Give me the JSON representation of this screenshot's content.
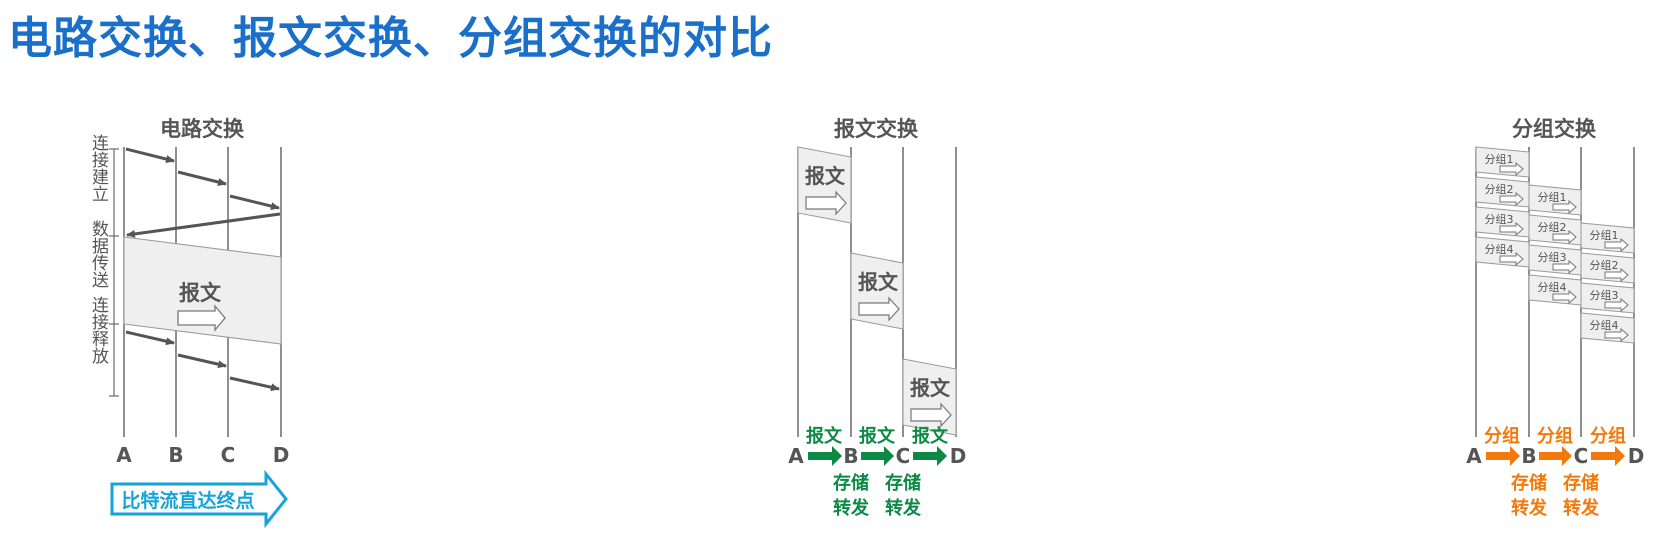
{
  "title": "电路交换、报文交换、分组交换的对比",
  "colors": {
    "title": "#1a6fc9",
    "gray": "#555555",
    "line": "#6a6a6a",
    "fill": "#efefef",
    "green": "#0c8a45",
    "orange": "#f27a0c",
    "blue": "#16a3d9"
  },
  "nodes": [
    "A",
    "B",
    "C",
    "D"
  ],
  "circuit": {
    "heading": "电路交换",
    "phases": [
      "连接建立",
      "数据传送",
      "连接释放"
    ],
    "message_label": "报文",
    "banner": "比特流直达终点"
  },
  "message": {
    "heading": "报文交换",
    "block_label": "报文",
    "hop_label": "报文",
    "store_forward": [
      "存储",
      "转发"
    ]
  },
  "packet": {
    "heading": "分组交换",
    "packets": [
      "分组1",
      "分组2",
      "分组3",
      "分组4"
    ],
    "hop_label": "分组",
    "store_forward": [
      "存储",
      "转发"
    ]
  }
}
